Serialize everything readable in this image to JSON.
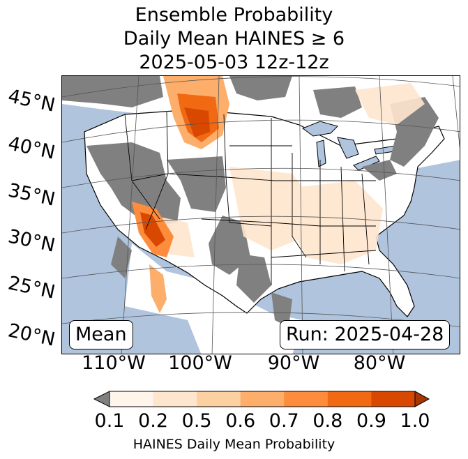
{
  "title": {
    "line1": "Ensemble Probability",
    "line2": "Daily Mean HAINES ≥ 6",
    "line3": "2025-05-03 12z-12z"
  },
  "map": {
    "lat_labels": [
      "45°N",
      "40°N",
      "35°N",
      "30°N",
      "25°N",
      "20°N"
    ],
    "lon_labels": [
      "110°W",
      "100°W",
      "90°W",
      "80°W"
    ],
    "mean_box": "Mean",
    "run_box": "Run: 2025-04-28"
  },
  "colorbar": {
    "ticks": [
      "0.1",
      "0.2",
      "0.5",
      "0.6",
      "0.7",
      "0.8",
      "0.9",
      "1.0"
    ],
    "colors": [
      "#fff5eb",
      "#fee6ce",
      "#fdd0a2",
      "#fdae6b",
      "#fd8d3c",
      "#f16913",
      "#d94801",
      "#a63603"
    ],
    "under_color": "#808080",
    "label": "HAINES Daily Mean Probability"
  },
  "colors": {
    "ocean": "#b0c4de",
    "land": "#ffffff",
    "no_data": "#808080"
  }
}
